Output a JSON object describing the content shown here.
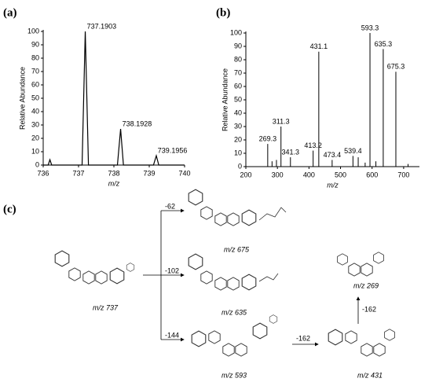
{
  "chart_data": [
    {
      "type": "line",
      "panel": "(a)",
      "xlabel": "m/z",
      "ylabel": "Relative Abundance",
      "color": "#000000",
      "x": [
        736,
        736.14,
        736.19,
        736.24,
        737.1,
        737.19,
        737.28,
        738.1,
        738.19,
        738.27,
        739.12,
        739.2,
        739.27,
        740
      ],
      "values": [
        0,
        0,
        4,
        0,
        0,
        100,
        0,
        0,
        27,
        0,
        0,
        7,
        0,
        0
      ],
      "annotations": [
        {
          "text": "737.1903",
          "x": 737.1903,
          "y": 100
        },
        {
          "text": "738.1928",
          "x": 738.1928,
          "y": 27
        },
        {
          "text": "739.1956",
          "x": 739.1956,
          "y": 7
        }
      ],
      "xlim": [
        736,
        740
      ],
      "xticks": [
        736,
        737,
        738,
        739,
        740
      ],
      "ylim": [
        0,
        100
      ],
      "yticks": [
        0,
        10,
        20,
        30,
        40,
        50,
        60,
        70,
        80,
        90,
        100
      ]
    },
    {
      "type": "stem",
      "panel": "(b)",
      "xlabel": "m/z",
      "ylabel": "Relative Abundance",
      "color": "#000000",
      "x": [
        269.3,
        283,
        297,
        311.3,
        341.3,
        413.2,
        431.1,
        473.4,
        539.4,
        556,
        578,
        593.3,
        612,
        635.3,
        675.3,
        714
      ],
      "values": [
        17,
        4,
        5,
        30,
        7,
        12,
        86,
        5,
        8,
        7,
        3,
        100,
        4,
        88,
        71,
        2
      ],
      "annotations": [
        {
          "text": "269.3",
          "x": 269.3,
          "y": 17
        },
        {
          "text": "311.3",
          "x": 311.3,
          "y": 30
        },
        {
          "text": "341.3",
          "x": 341.3,
          "y": 7
        },
        {
          "text": "413.2",
          "x": 413.2,
          "y": 12
        },
        {
          "text": "431.1",
          "x": 431.1,
          "y": 86
        },
        {
          "text": "473.4",
          "x": 473.4,
          "y": 5
        },
        {
          "text": "539.4",
          "x": 539.4,
          "y": 8
        },
        {
          "text": "593.3",
          "x": 593.3,
          "y": 100
        },
        {
          "text": "635.3",
          "x": 635.3,
          "y": 88
        },
        {
          "text": "675.3",
          "x": 675.3,
          "y": 71
        }
      ],
      "xlim": [
        200,
        750
      ],
      "xticks": [
        200,
        300,
        400,
        500,
        600,
        700
      ],
      "ylim": [
        0,
        100
      ],
      "yticks": [
        0,
        10,
        20,
        30,
        40,
        50,
        60,
        70,
        80,
        90,
        100
      ]
    }
  ],
  "diagram": {
    "panel": "(c)",
    "compounds": [
      "m/z 737",
      "m/z 675",
      "m/z 635",
      "m/z 593",
      "m/z 431",
      "m/z 269"
    ],
    "losses": [
      "-62",
      "-102",
      "-144",
      "-162",
      "-162"
    ]
  }
}
